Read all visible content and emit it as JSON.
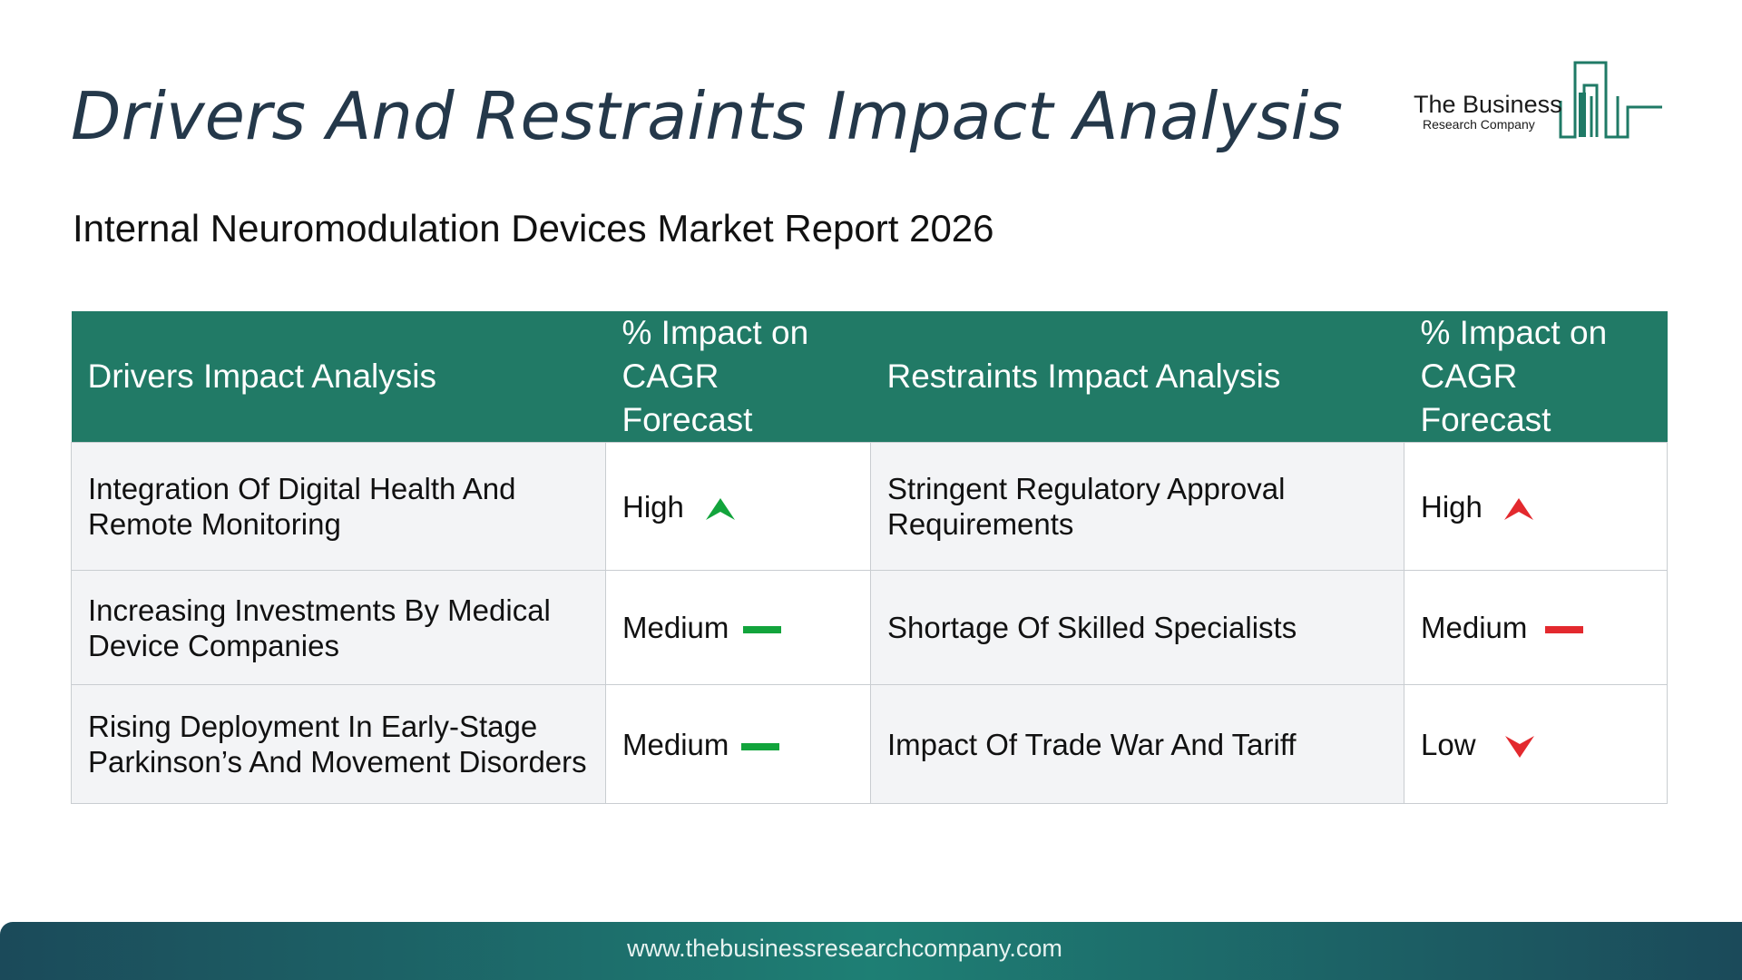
{
  "header": {
    "title": "Drivers And Restraints Impact Analysis",
    "subtitle": "Internal Neuromodulation Devices Market Report 2026"
  },
  "logo": {
    "line1": "The Business",
    "line2": "Research Company",
    "color": "#1f7a66"
  },
  "table": {
    "headers": {
      "drivers": "Drivers Impact Analysis",
      "drivers_impact": "% Impact on CAGR Forecast",
      "restraints": "Restraints Impact Analysis",
      "restraints_impact": "% Impact on CAGR Forecast"
    },
    "rows": [
      {
        "driver": "Integration Of Digital Health And Remote Monitoring",
        "driver_impact": "High",
        "driver_icon": "arrow-up-icon",
        "restraint": "Stringent Regulatory Approval Requirements",
        "restraint_impact": "High",
        "restraint_icon": "arrow-up-icon"
      },
      {
        "driver": "Increasing Investments By Medical Device Companies",
        "driver_impact": "Medium",
        "driver_icon": "dash-icon",
        "restraint": "Shortage Of Skilled Specialists",
        "restraint_impact": "Medium",
        "restraint_icon": "dash-icon"
      },
      {
        "driver": "Rising Deployment In Early-Stage Parkinson’s And Movement Disorders",
        "driver_impact": "Medium",
        "driver_icon": "dash-icon",
        "restraint": "Impact Of Trade War And Tariff",
        "restraint_impact": "Low",
        "restraint_icon": "arrow-down-icon"
      }
    ]
  },
  "colors": {
    "header_bg": "#217a66",
    "driver_impact": "#12a43c",
    "restraint_impact": "#e3292e"
  },
  "footer": {
    "url": "www.thebusinessresearchcompany.com"
  }
}
